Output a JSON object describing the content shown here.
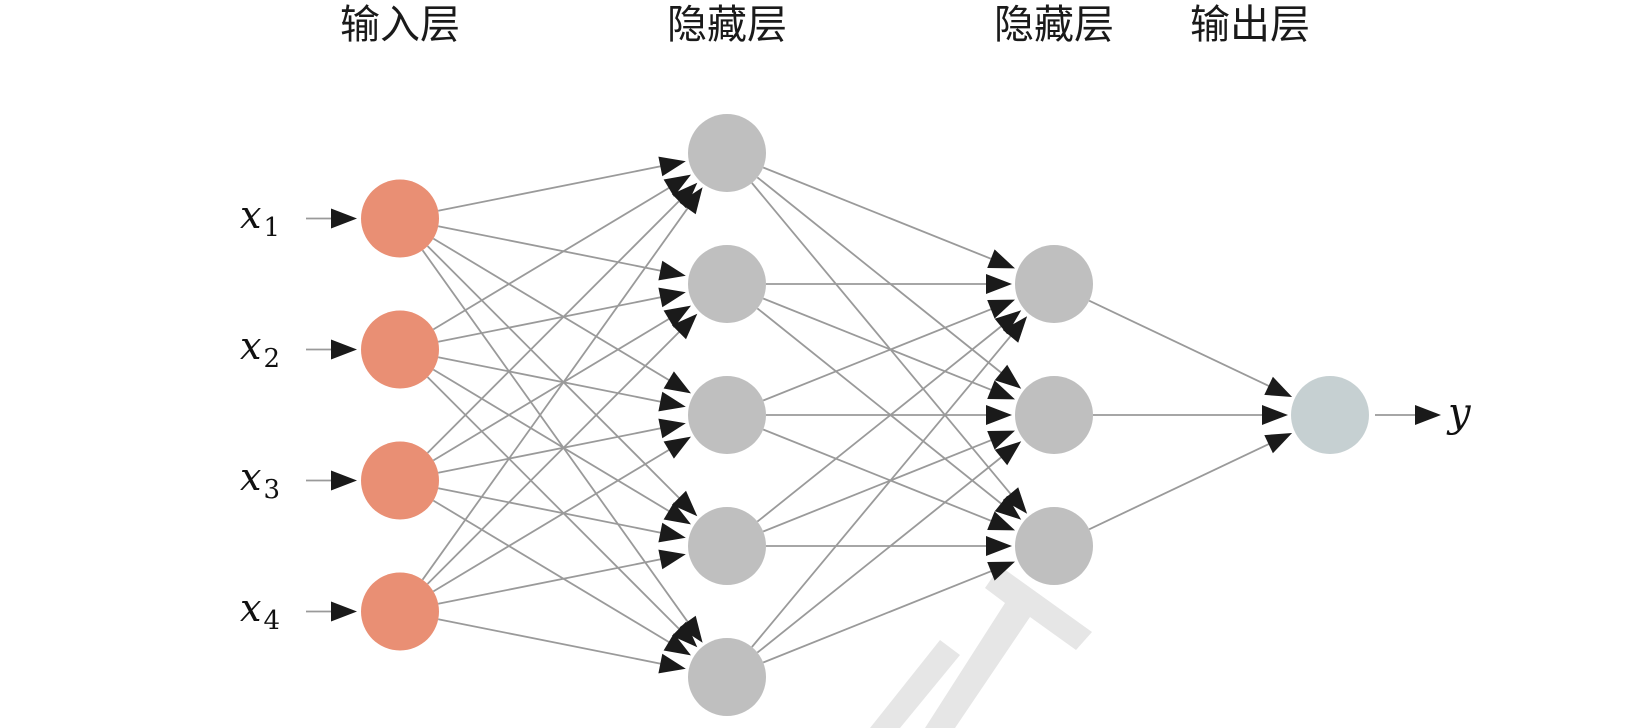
{
  "layer_titles": {
    "input": "输入层",
    "hidden1": "隐藏层",
    "hidden2": "隐藏层",
    "output": "输出层"
  },
  "inputs": [
    {
      "symbol": "x",
      "subscript": "1"
    },
    {
      "symbol": "x",
      "subscript": "2"
    },
    {
      "symbol": "x",
      "subscript": "3"
    },
    {
      "symbol": "x",
      "subscript": "4"
    }
  ],
  "output": {
    "symbol": "y"
  },
  "network": {
    "layers": [
      4,
      5,
      3,
      1
    ],
    "fully_connected": true
  },
  "colors": {
    "input_node": "#e98f74",
    "hidden_node": "#bfbfbf",
    "output_node": "#c6d0d2",
    "edge": "#9a9a9a",
    "arrowhead": "#1a1a1a",
    "watermark": "#e6e6e6"
  }
}
